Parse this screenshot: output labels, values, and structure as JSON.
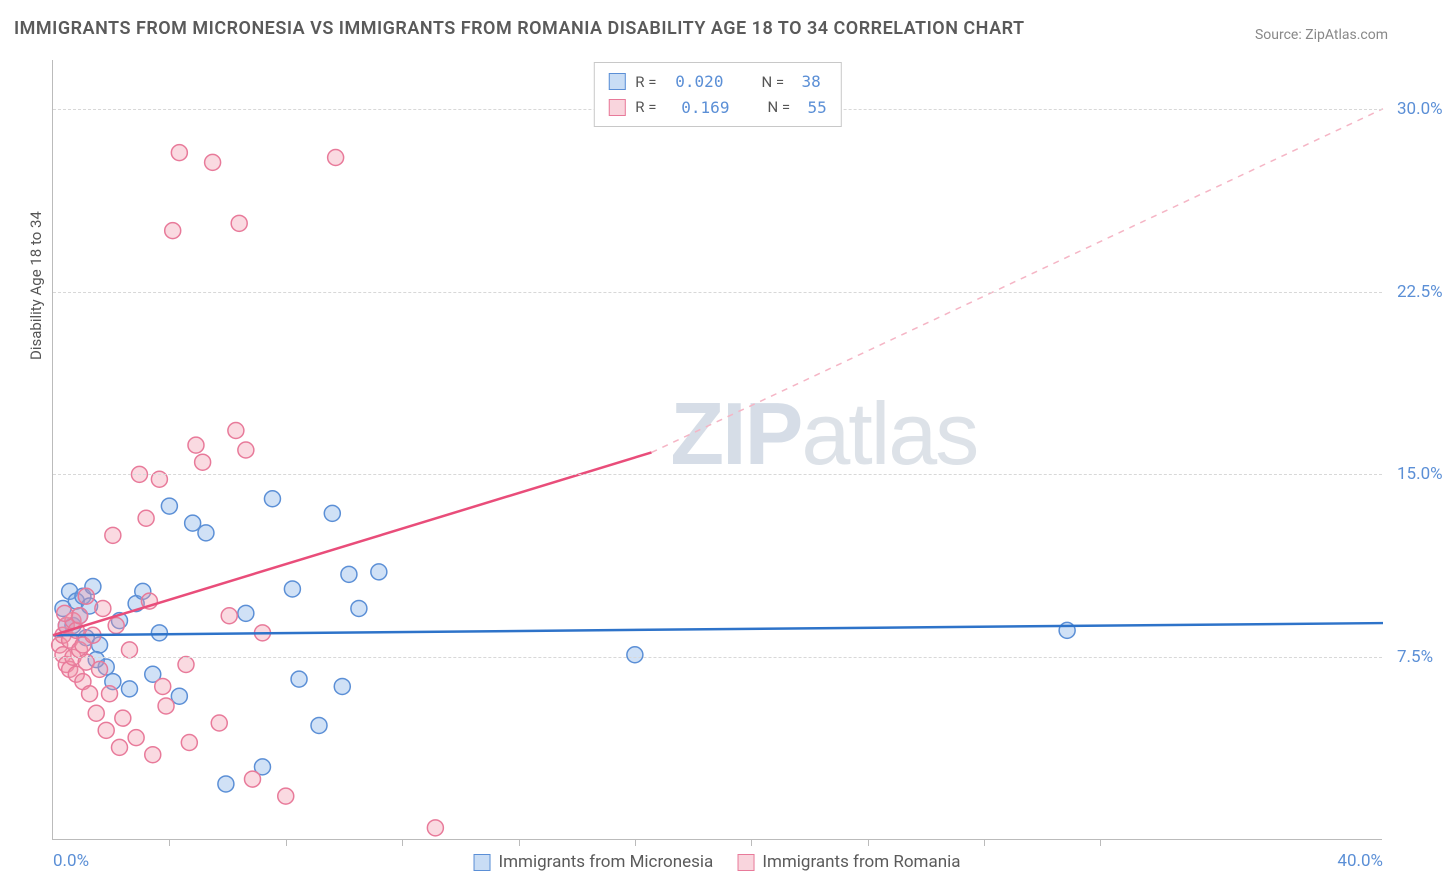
{
  "title": "IMMIGRANTS FROM MICRONESIA VS IMMIGRANTS FROM ROMANIA DISABILITY AGE 18 TO 34 CORRELATION CHART",
  "source": "Source: ZipAtlas.com",
  "y_axis_label": "Disability Age 18 to 34",
  "watermark": {
    "bold": "ZIP",
    "rest": "atlas"
  },
  "chart": {
    "type": "scatter",
    "xlim": [
      0,
      40
    ],
    "ylim": [
      0,
      32
    ],
    "x_ticks": [
      0,
      40
    ],
    "x_tick_labels": [
      "0.0%",
      "40.0%"
    ],
    "x_minor_ticks": [
      3.5,
      7,
      10.5,
      14,
      17.5,
      21,
      24.5,
      28,
      31.5
    ],
    "y_ticks": [
      7.5,
      15.0,
      22.5,
      30.0
    ],
    "y_tick_labels": [
      "7.5%",
      "15.0%",
      "22.5%",
      "30.0%"
    ],
    "background_color": "#ffffff",
    "grid_color": "#d8d8d8",
    "series": [
      {
        "name": "Immigrants from Micronesia",
        "color_fill": "rgba(120,170,230,0.35)",
        "color_stroke": "#5b8fd6",
        "marker_radius": 8,
        "R": "0.020",
        "N": "38",
        "trend": {
          "x1": 0,
          "y1": 8.4,
          "x2": 40,
          "y2": 8.9,
          "color": "#2e73c9",
          "width": 2.5,
          "dash": "none"
        },
        "points": [
          [
            0.3,
            9.5
          ],
          [
            0.5,
            10.2
          ],
          [
            0.6,
            8.8
          ],
          [
            0.7,
            9.8
          ],
          [
            0.8,
            9.2
          ],
          [
            0.9,
            10.0
          ],
          [
            1.0,
            8.3
          ],
          [
            1.1,
            9.6
          ],
          [
            1.2,
            10.4
          ],
          [
            1.4,
            8.0
          ],
          [
            1.6,
            7.1
          ],
          [
            1.8,
            6.5
          ],
          [
            2.0,
            9.0
          ],
          [
            2.3,
            6.2
          ],
          [
            2.5,
            9.7
          ],
          [
            2.7,
            10.2
          ],
          [
            3.0,
            6.8
          ],
          [
            3.2,
            8.5
          ],
          [
            3.5,
            13.7
          ],
          [
            3.8,
            5.9
          ],
          [
            4.2,
            13.0
          ],
          [
            4.6,
            12.6
          ],
          [
            5.2,
            2.3
          ],
          [
            5.8,
            9.3
          ],
          [
            6.3,
            3.0
          ],
          [
            6.6,
            14.0
          ],
          [
            7.2,
            10.3
          ],
          [
            7.4,
            6.6
          ],
          [
            8.0,
            4.7
          ],
          [
            8.4,
            13.4
          ],
          [
            8.7,
            6.3
          ],
          [
            8.9,
            10.9
          ],
          [
            9.2,
            9.5
          ],
          [
            9.8,
            11.0
          ],
          [
            17.5,
            7.6
          ],
          [
            30.5,
            8.6
          ],
          [
            1.3,
            7.4
          ],
          [
            0.4,
            8.8
          ]
        ]
      },
      {
        "name": "Immigrants from Romania",
        "color_fill": "rgba(240,150,170,0.35)",
        "color_stroke": "#e87a9a",
        "marker_radius": 8,
        "R": "0.169",
        "N": "55",
        "trend_solid": {
          "x1": 0,
          "y1": 8.4,
          "x2": 18,
          "y2": 15.9,
          "color": "#e94d7a",
          "width": 2.5
        },
        "trend_dash": {
          "x1": 18,
          "y1": 15.9,
          "x2": 40,
          "y2": 30.0,
          "color": "#f5b5c5",
          "width": 1.5
        },
        "points": [
          [
            0.2,
            8.0
          ],
          [
            0.3,
            7.6
          ],
          [
            0.3,
            8.4
          ],
          [
            0.4,
            7.2
          ],
          [
            0.4,
            8.8
          ],
          [
            0.5,
            7.0
          ],
          [
            0.5,
            8.2
          ],
          [
            0.6,
            7.5
          ],
          [
            0.6,
            9.0
          ],
          [
            0.7,
            6.8
          ],
          [
            0.7,
            8.6
          ],
          [
            0.8,
            7.8
          ],
          [
            0.8,
            9.2
          ],
          [
            0.9,
            6.5
          ],
          [
            0.9,
            8.0
          ],
          [
            1.0,
            7.3
          ],
          [
            1.0,
            10.0
          ],
          [
            1.1,
            6.0
          ],
          [
            1.2,
            8.4
          ],
          [
            1.3,
            5.2
          ],
          [
            1.4,
            7.0
          ],
          [
            1.5,
            9.5
          ],
          [
            1.6,
            4.5
          ],
          [
            1.7,
            6.0
          ],
          [
            1.8,
            12.5
          ],
          [
            2.0,
            3.8
          ],
          [
            2.1,
            5.0
          ],
          [
            2.3,
            7.8
          ],
          [
            2.5,
            4.2
          ],
          [
            2.6,
            15.0
          ],
          [
            2.8,
            13.2
          ],
          [
            3.0,
            3.5
          ],
          [
            3.2,
            14.8
          ],
          [
            3.4,
            5.5
          ],
          [
            3.6,
            25.0
          ],
          [
            3.8,
            28.2
          ],
          [
            4.1,
            4.0
          ],
          [
            4.3,
            16.2
          ],
          [
            4.5,
            15.5
          ],
          [
            4.8,
            27.8
          ],
          [
            5.0,
            4.8
          ],
          [
            5.3,
            9.2
          ],
          [
            5.5,
            16.8
          ],
          [
            5.6,
            25.3
          ],
          [
            5.8,
            16.0
          ],
          [
            6.0,
            2.5
          ],
          [
            6.3,
            8.5
          ],
          [
            7.0,
            1.8
          ],
          [
            8.5,
            28.0
          ],
          [
            11.5,
            0.5
          ],
          [
            4.0,
            7.2
          ],
          [
            1.9,
            8.8
          ],
          [
            2.9,
            9.8
          ],
          [
            3.3,
            6.3
          ],
          [
            0.35,
            9.3
          ]
        ]
      }
    ]
  },
  "legend_bottom": [
    {
      "swatch": "blue",
      "label": "Immigrants from Micronesia"
    },
    {
      "swatch": "pink",
      "label": "Immigrants from Romania"
    }
  ]
}
